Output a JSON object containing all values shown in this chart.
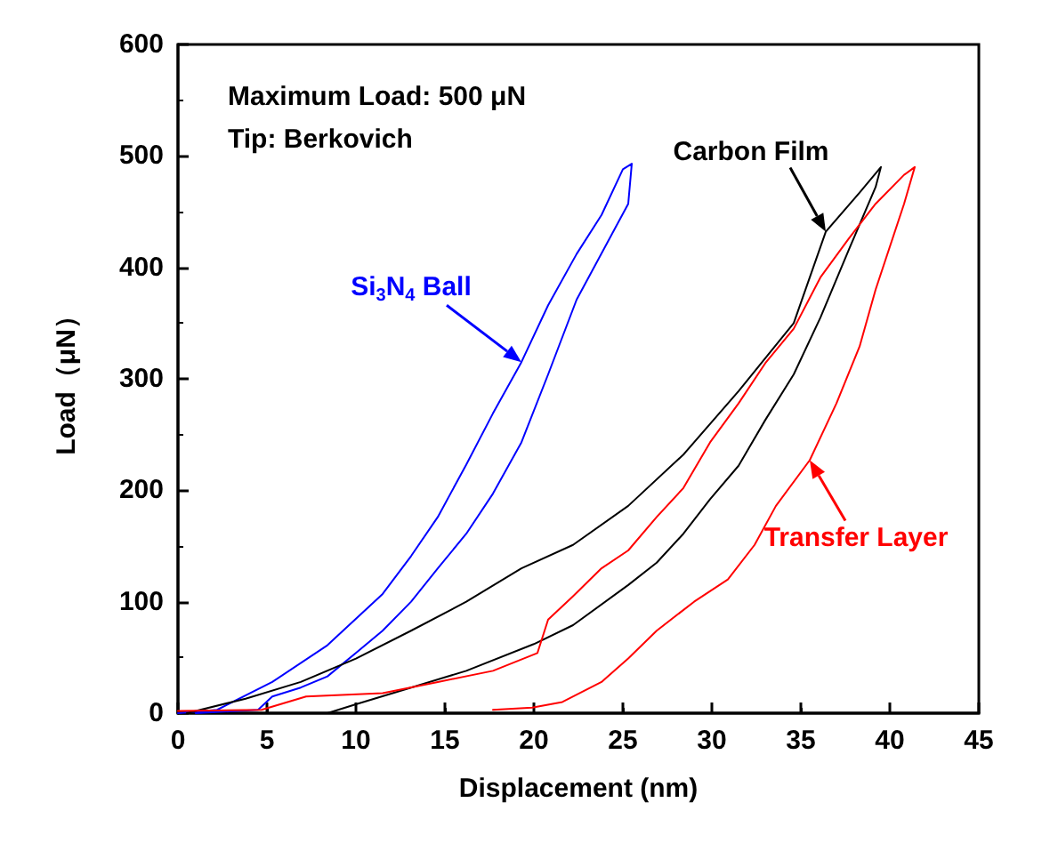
{
  "chart_data": {
    "type": "line",
    "xlabel": "Displacement (nm)",
    "ylabel": "Load（μN）",
    "xlim": [
      0,
      45
    ],
    "xticks": [
      0,
      5,
      10,
      15,
      20,
      25,
      30,
      35,
      40,
      45
    ],
    "ylim": [
      0,
      600
    ],
    "yticks": [
      0,
      100,
      200,
      300,
      400,
      500,
      600
    ],
    "grid": false,
    "marker": "none",
    "line_style": "solid",
    "annotations": [
      "Maximum Load: 500 μN",
      "Tip: Berkovich",
      {
        "text": "Si$_{3}$N$_{4}$ Ball",
        "x": 19.3,
        "y": 315
      },
      {
        "text": "Carbon Film",
        "x": 36.4,
        "y": 432
      },
      {
        "text": "Transfer Layer",
        "x": 35.5,
        "y": 227
      }
    ],
    "series": [
      {
        "color": "#0000ff",
        "x": [
          0,
          2.2,
          5.3,
          8.4,
          11.5,
          13.1,
          14.6,
          16.2,
          17.7,
          19.3,
          20.8,
          22.4,
          23.8,
          25,
          25.5,
          25.3,
          22.4,
          20.8,
          19.3,
          17.7,
          16.2,
          14.6,
          13.1,
          11.5,
          10,
          8.4,
          6.9,
          5.3,
          4.5,
          1
        ],
        "values": [
          0,
          3,
          28,
          61,
          107,
          141,
          176,
          223,
          269,
          315,
          366,
          412,
          447,
          488,
          493,
          457,
          371,
          304,
          243,
          197,
          161,
          130,
          100,
          74,
          54,
          33,
          23,
          15,
          3,
          0
        ]
      },
      {
        "color": "#000000",
        "x": [
          0.5,
          3.8,
          6.9,
          10,
          13.1,
          16.2,
          19.3,
          22.2,
          25.3,
          28.4,
          31.5,
          34.6,
          36.4,
          38.3,
          39.5,
          39.2,
          37.7,
          36.1,
          34.6,
          33,
          31.5,
          29.9,
          28.4,
          26.9,
          25.3,
          22.2,
          20,
          16.2,
          13.1,
          10,
          8.4
        ],
        "values": [
          0,
          13,
          28,
          49,
          74,
          100,
          130,
          151,
          186,
          232,
          289,
          350,
          432,
          467,
          490,
          472,
          416,
          355,
          304,
          263,
          222,
          192,
          161,
          135,
          115,
          79,
          62,
          38,
          23,
          8,
          0
        ]
      },
      {
        "color": "#ff0000",
        "x": [
          0,
          4.7,
          7.2,
          11.5,
          14.6,
          17.7,
          20.2,
          20.8,
          22.2,
          23.8,
          25.3,
          26.9,
          28.4,
          29.9,
          31.5,
          33,
          34.6,
          36.1,
          37.7,
          39.2,
          40.8,
          41.4,
          40.8,
          39.2,
          38.3,
          37,
          35.5,
          33.6,
          32.4,
          30.9,
          29,
          26.9,
          25.3,
          23.8,
          21.6,
          19.9,
          17.7
        ],
        "values": [
          2,
          3,
          15,
          18,
          28,
          38,
          54,
          84,
          105,
          130,
          146,
          176,
          202,
          243,
          278,
          314,
          345,
          391,
          426,
          457,
          483,
          490,
          457,
          380,
          329,
          278,
          227,
          186,
          151,
          120,
          100,
          74,
          49,
          28,
          10,
          5,
          3
        ]
      }
    ]
  }
}
